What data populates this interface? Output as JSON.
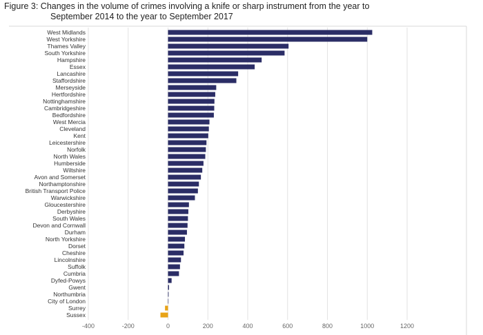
{
  "figure": {
    "title_line1": "Figure 3: Changes in the volume of crimes involving a knife or sharp instrument from the year to",
    "title_line2": "September 2014 to the year to September 2017"
  },
  "chart_data": {
    "type": "bar",
    "orientation": "horizontal",
    "title": "Figure 3: Changes in the volume of crimes involving a knife or sharp instrument from the year to September 2014 to the year to September 2017",
    "xlabel": "",
    "ylabel": "",
    "xlim": [
      -400,
      1200
    ],
    "xticks": [
      -400,
      -200,
      0,
      200,
      400,
      600,
      800,
      1000,
      1200
    ],
    "grid": true,
    "colors": {
      "increase": "#2b2d66",
      "decrease": "#e8a317"
    },
    "categories": [
      "West Midlands",
      "West Yorkshire",
      "Thames Valley",
      "South Yorkshire",
      "Hampshire",
      "Essex",
      "Lancashire",
      "Staffordshire",
      "Merseyside",
      "Hertfordshire",
      "Nottinghamshire",
      "Cambridgeshire",
      "Bedfordshire",
      "West Mercia",
      "Cleveland",
      "Kent",
      "Leicestershire",
      "Norfolk",
      "North Wales",
      "Humberside",
      "Wiltshire",
      "Avon and Somerset",
      "Northamptonshire",
      "British Transport Police",
      "Warwickshire",
      "Gloucestershire",
      "Derbyshire",
      "South Wales",
      "Devon and Cornwall",
      "Durham",
      "North Yorkshire",
      "Dorset",
      "Cheshire",
      "Lincolnshire",
      "Suffolk",
      "Cumbria",
      "Dyfed-Powys",
      "Gwent",
      "Northumbria",
      "City of London",
      "Surrey",
      "Sussex"
    ],
    "values": [
      1025,
      1000,
      605,
      585,
      470,
      435,
      352,
      343,
      242,
      237,
      233,
      232,
      230,
      208,
      205,
      202,
      193,
      190,
      187,
      178,
      172,
      165,
      155,
      150,
      135,
      105,
      102,
      100,
      98,
      95,
      85,
      82,
      78,
      65,
      60,
      55,
      18,
      5,
      3,
      2,
      -15,
      -38
    ]
  }
}
